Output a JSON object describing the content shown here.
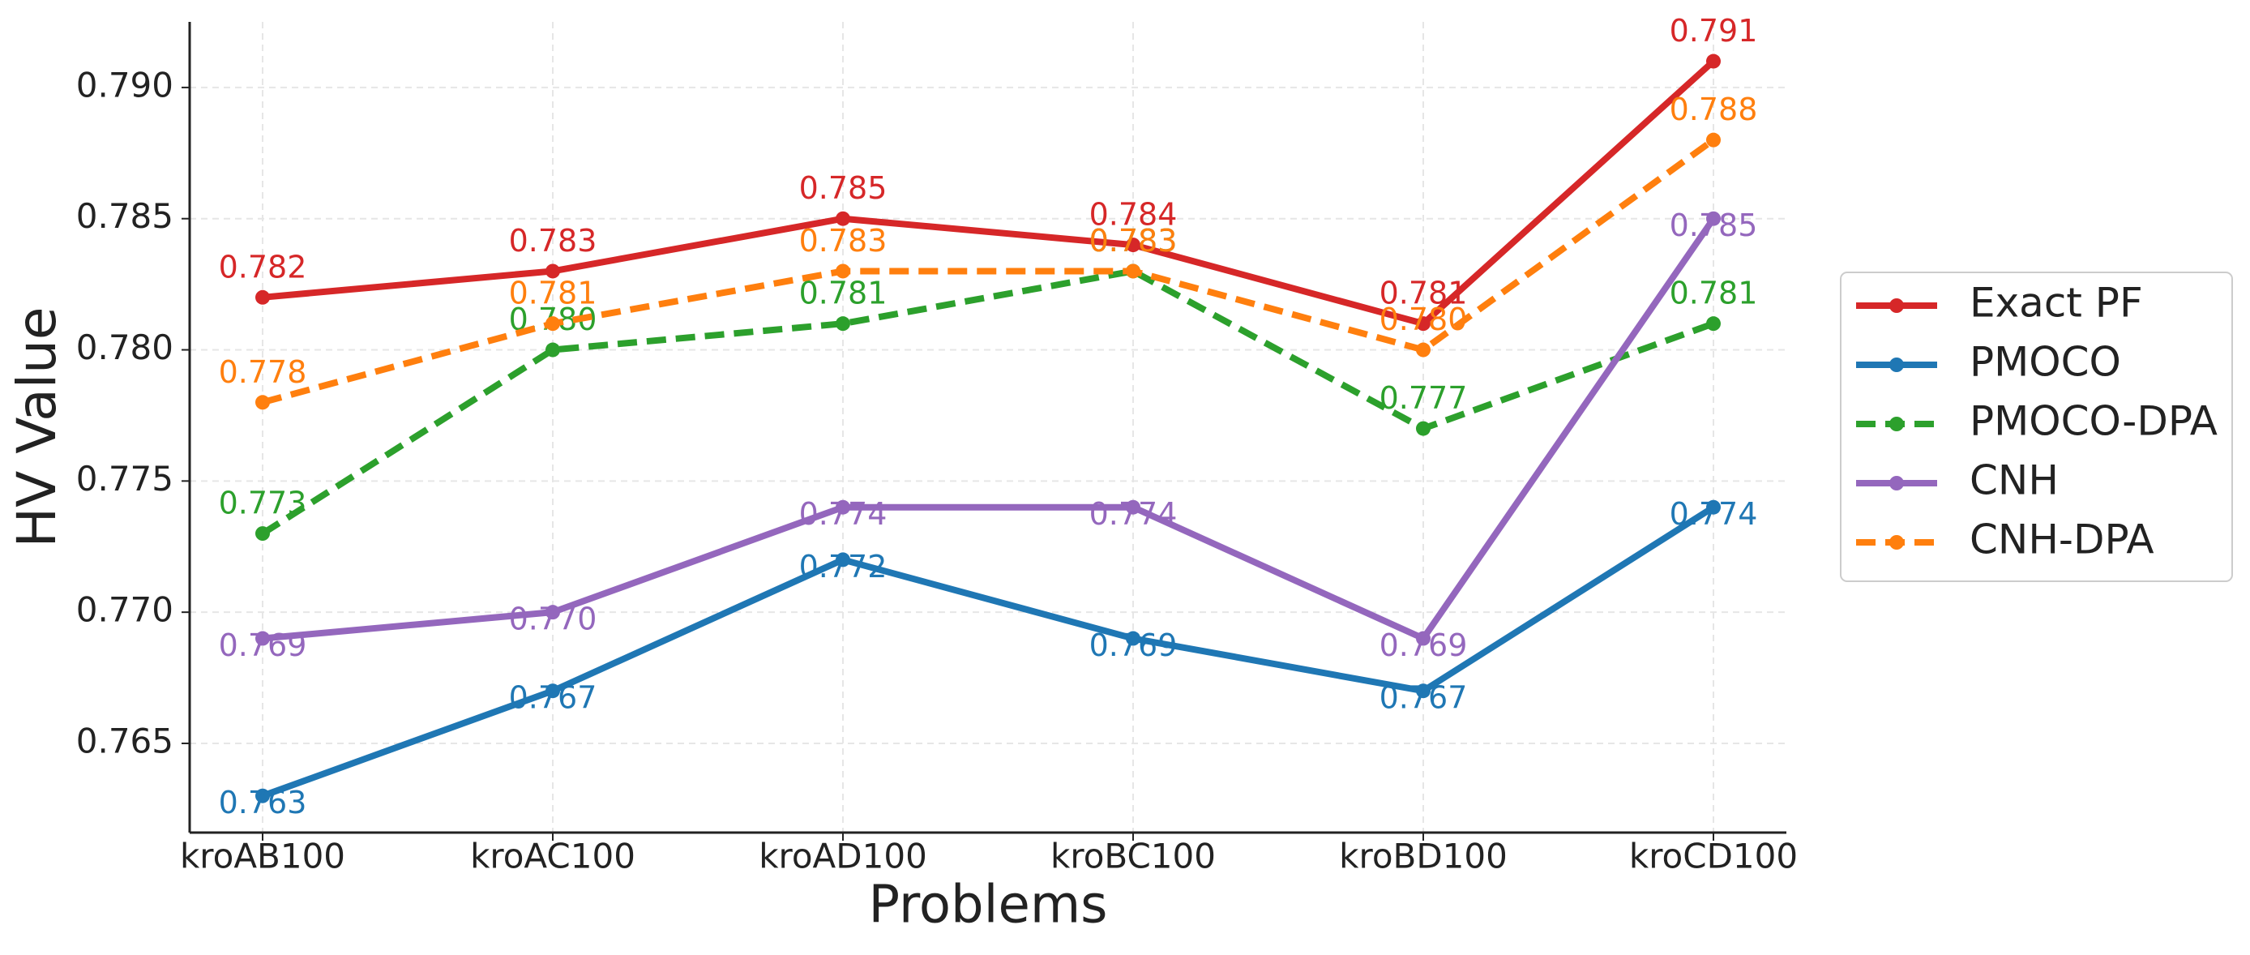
{
  "chart_data": {
    "type": "line",
    "x_label": "Problems",
    "y_label": "HV Value",
    "categories": [
      "kroAB100",
      "kroAC100",
      "kroAD100",
      "kroBC100",
      "kroBD100",
      "kroCD100"
    ],
    "series": [
      {
        "name": "Exact PF",
        "color": "#d62728",
        "linestyle": "solid",
        "values": [
          0.782,
          0.783,
          0.785,
          0.784,
          0.781,
          0.791
        ],
        "value_labels": [
          "0.782",
          "0.783",
          "0.785",
          "0.784",
          "0.781",
          "0.791"
        ]
      },
      {
        "name": "PMOCO",
        "color": "#1f77b4",
        "linestyle": "solid",
        "values": [
          0.763,
          0.767,
          0.772,
          0.769,
          0.767,
          0.774
        ],
        "value_labels": [
          "0.763",
          "0.767",
          "0.772",
          "0.769",
          "0.767",
          "0.774"
        ]
      },
      {
        "name": "PMOCO-DPA",
        "color": "#2ca02c",
        "linestyle": "dashed",
        "values": [
          0.773,
          0.78,
          0.781,
          0.783,
          0.777,
          0.781
        ],
        "value_labels": [
          "0.773",
          "0.780",
          "0.781",
          "0.783",
          "0.777",
          "0.781"
        ]
      },
      {
        "name": "CNH",
        "color": "#9467bd",
        "linestyle": "solid",
        "values": [
          0.769,
          0.77,
          0.774,
          0.774,
          0.769,
          0.785
        ],
        "value_labels": [
          "0.769",
          "0.770",
          "0.774",
          "0.774",
          "0.769",
          "0.785"
        ]
      },
      {
        "name": "CNH-DPA",
        "color": "#ff7f0e",
        "linestyle": "dashed",
        "values": [
          0.778,
          0.781,
          0.783,
          0.783,
          0.78,
          0.788
        ],
        "value_labels": [
          "0.778",
          "0.781",
          "0.783",
          "0.783",
          "0.780",
          "0.788"
        ]
      }
    ],
    "ylim": [
      0.7616,
      0.7925
    ],
    "yticks": [
      0.765,
      {
        "value": 0.77,
        "label": "0.770"
      },
      0.775,
      {
        "value": 0.78,
        "label": "0.780"
      },
      0.785,
      {
        "value": 0.79,
        "label": "0.790"
      }
    ],
    "grid": true,
    "legend": "outside right"
  }
}
